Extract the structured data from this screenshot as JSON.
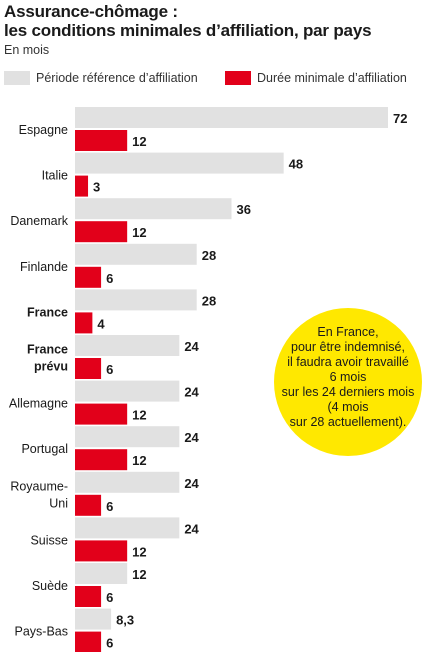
{
  "header": {
    "title_lines": [
      "Assurance-chômage :",
      "les conditions minimales d’affiliation, par pays"
    ],
    "subtitle": "En mois"
  },
  "legend": [
    {
      "label": "Période référence d’affiliation",
      "color": "#e1e1e1"
    },
    {
      "label": "Durée minimale d’affiliation",
      "color": "#e2001a"
    }
  ],
  "chart_data": {
    "type": "bar",
    "orientation": "horizontal",
    "title": "Assurance-chômage : les conditions minimales d’affiliation, par pays",
    "subtitle": "En mois",
    "categories": [
      {
        "lines": [
          "Espagne"
        ],
        "bold": false
      },
      {
        "lines": [
          "Italie"
        ],
        "bold": false
      },
      {
        "lines": [
          "Danemark"
        ],
        "bold": false
      },
      {
        "lines": [
          "Finlande"
        ],
        "bold": false
      },
      {
        "lines": [
          "France"
        ],
        "bold": true
      },
      {
        "lines": [
          "France",
          "prévu"
        ],
        "bold": true
      },
      {
        "lines": [
          "Allemagne"
        ],
        "bold": false
      },
      {
        "lines": [
          "Portugal"
        ],
        "bold": false
      },
      {
        "lines": [
          "Royaume-",
          "Uni"
        ],
        "bold": false
      },
      {
        "lines": [
          "Suisse"
        ],
        "bold": false
      },
      {
        "lines": [
          "Suède"
        ],
        "bold": false
      },
      {
        "lines": [
          "Pays-Bas"
        ],
        "bold": false
      }
    ],
    "series": [
      {
        "name": "Période référence d’affiliation",
        "color": "#e1e1e1",
        "values": [
          72,
          48,
          36,
          28,
          28,
          24,
          24,
          24,
          24,
          24,
          12,
          8.3
        ],
        "labels": [
          "72",
          "48",
          "36",
          "28",
          "28",
          "24",
          "24",
          "24",
          "24",
          "24",
          "12",
          "8,3"
        ]
      },
      {
        "name": "Durée minimale d’affiliation",
        "color": "#e2001a",
        "values": [
          12,
          3,
          12,
          6,
          4,
          6,
          12,
          12,
          6,
          12,
          6,
          6
        ],
        "labels": [
          "12",
          "3",
          "12",
          "6",
          "4",
          "6",
          "12",
          "12",
          "6",
          "12",
          "6",
          "6"
        ]
      }
    ],
    "xlim": [
      0,
      72
    ],
    "grid": false,
    "legend_position": "top"
  },
  "annotation": {
    "lines": [
      "En France,",
      "pour être indemnisé,",
      "il faudra avoir travaillé",
      "6 mois",
      "sur les 24 derniers mois",
      "(4 mois",
      "sur 28 actuellement)."
    ]
  }
}
